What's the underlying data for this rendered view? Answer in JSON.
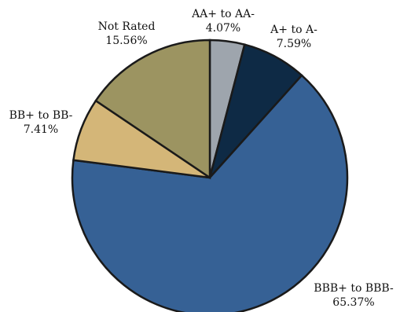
{
  "chart_data": {
    "type": "pie",
    "title": "",
    "slices": [
      {
        "label": "AA+ to AA-",
        "value": 4.07,
        "display": "4.07%",
        "color": "#9ea5ad"
      },
      {
        "label": "A+ to A-",
        "value": 7.59,
        "display": "7.59%",
        "color": "#0e2a45"
      },
      {
        "label": "BBB+ to BBB-",
        "value": 65.37,
        "display": "65.37%",
        "color": "#366195"
      },
      {
        "label": "BB+ to BB-",
        "value": 7.41,
        "display": "7.41%",
        "color": "#d4b678"
      },
      {
        "label": "Not Rated",
        "value": 15.56,
        "display": "15.56%",
        "color": "#9c9461"
      }
    ],
    "start_angle": "12 o'clock",
    "direction": "clockwise",
    "legend": "none (labels outside slices)"
  }
}
